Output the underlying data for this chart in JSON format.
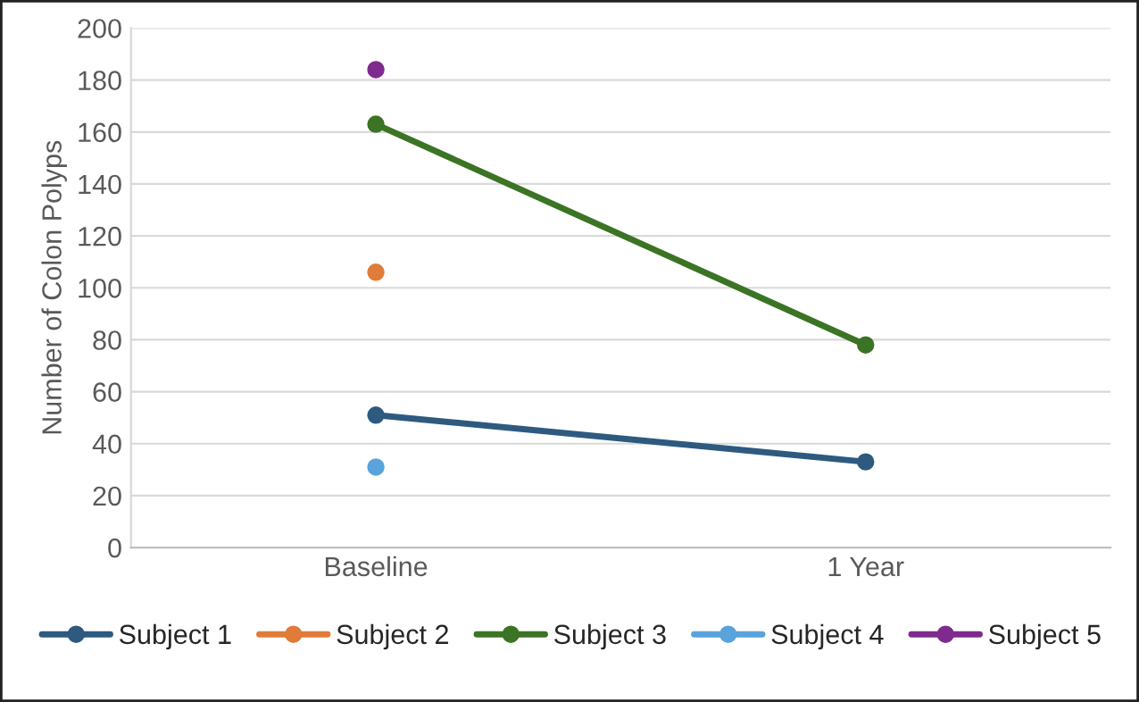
{
  "chart_data": {
    "type": "line",
    "ylabel": "Number of Colon Polyps",
    "categories": [
      "Baseline",
      "1 Year"
    ],
    "series": [
      {
        "name": "Subject 1",
        "color": "#2e5a80",
        "values": [
          51,
          33
        ]
      },
      {
        "name": "Subject 2",
        "color": "#e07b39",
        "values": [
          106,
          null
        ]
      },
      {
        "name": "Subject 3",
        "color": "#3b7424",
        "values": [
          163,
          78
        ]
      },
      {
        "name": "Subject 4",
        "color": "#5aa3dc",
        "values": [
          31,
          null
        ]
      },
      {
        "name": "Subject 5",
        "color": "#7f2a8e",
        "values": [
          184,
          null
        ]
      }
    ],
    "ylim": [
      0,
      200
    ],
    "yticks": [
      0,
      20,
      40,
      60,
      80,
      100,
      120,
      140,
      160,
      180,
      200
    ],
    "grid": "y",
    "legend": "bottom",
    "marker": "circle",
    "line_style": "solid"
  }
}
